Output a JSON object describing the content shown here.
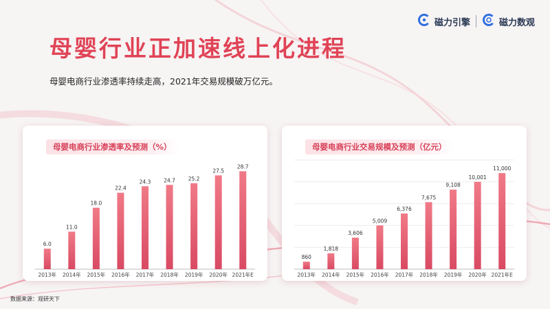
{
  "header": {
    "title": "母婴行业正加速线上化进程",
    "subtitle": "母婴电商行业渗透率持续走高，2021年交易规模破万亿元。",
    "logos": [
      {
        "name": "磁力引擎",
        "icon": "magnet-c-icon"
      },
      {
        "name": "磁力数观",
        "icon": "eye-c-icon"
      }
    ]
  },
  "colors": {
    "title": "#e04356",
    "bar_top": "#f07a87",
    "bar_bottom": "#d94a63",
    "brand_logo": "#2f6fe0"
  },
  "chart_data": [
    {
      "type": "bar",
      "title": "母婴电商行业渗透率及预测（%）",
      "categories": [
        "2013年",
        "2014年",
        "2015年",
        "2016年",
        "2017年",
        "2018年",
        "2019年",
        "2020年",
        "2021年E"
      ],
      "values": [
        6.0,
        11.0,
        18.0,
        22.4,
        24.3,
        24.7,
        25.2,
        27.5,
        28.7
      ],
      "value_labels": [
        "6.0",
        "11.0",
        "18.0",
        "22.4",
        "24.3",
        "24.7",
        "25.2",
        "27.5",
        "28.7"
      ],
      "ylim": [
        0,
        32
      ],
      "grid": false,
      "legend": "none"
    },
    {
      "type": "bar",
      "title": "母婴电商行业交易规模及预测（亿元）",
      "categories": [
        "2013年",
        "2014年",
        "2015年",
        "2016年",
        "2017年",
        "2018年",
        "2019年",
        "2020年",
        "2021年E"
      ],
      "values": [
        860,
        1818,
        3606,
        5009,
        6376,
        7675,
        9108,
        10001,
        11000
      ],
      "value_labels": [
        "860",
        "1,818",
        "3,606",
        "5,009",
        "6,376",
        "7,675",
        "9,108",
        "10,001",
        "11,000"
      ],
      "ylim": [
        0,
        12500
      ],
      "grid": true,
      "legend": "none"
    }
  ],
  "footer": {
    "source": "数据来源：观研天下"
  }
}
